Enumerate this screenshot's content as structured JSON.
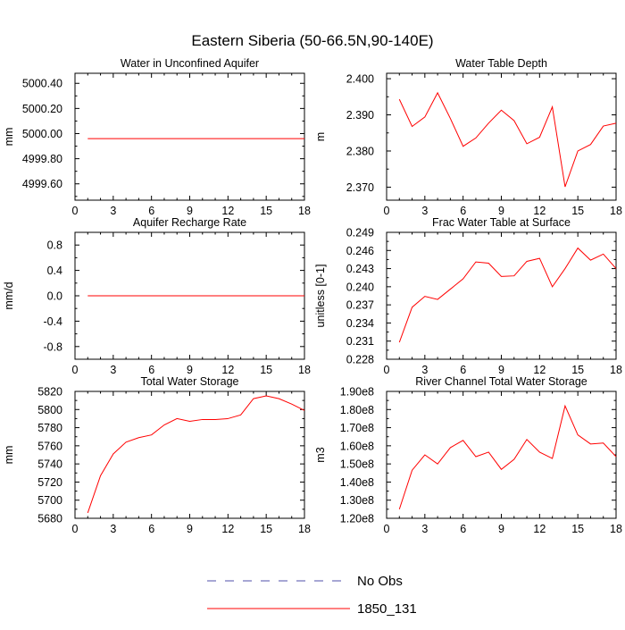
{
  "figure": {
    "title": "Eastern Siberia (50-66.5N,90-140E)",
    "legend": [
      {
        "label": "No Obs",
        "color": "#4f4fa8",
        "dash": true
      },
      {
        "label": "1850_131",
        "color": "#ff0000",
        "dash": false
      }
    ]
  },
  "chart_data": [
    {
      "type": "line",
      "title": "Water in Unconfined Aquifer",
      "ylabel": "mm",
      "x": [
        1,
        2,
        3,
        4,
        5,
        6,
        7,
        8,
        9,
        10,
        11,
        12,
        13,
        14,
        15,
        16,
        17,
        18
      ],
      "xlim": [
        0,
        18
      ],
      "xticks": [
        0,
        3,
        6,
        9,
        12,
        15,
        18
      ],
      "xtick_labels": [
        "0",
        "3",
        "6",
        "9",
        "12",
        "15",
        "18"
      ],
      "ylim": [
        4999.47,
        5000.48
      ],
      "yticks": [
        4999.6,
        4999.8,
        5000.0,
        5000.2,
        5000.4
      ],
      "ytick_labels": [
        "4999.60",
        "4999.80",
        "5000.00",
        "5000.20",
        "5000.40"
      ],
      "series": [
        {
          "name": "1850_131",
          "values": [
            4999.96,
            4999.96,
            4999.96,
            4999.96,
            4999.96,
            4999.96,
            4999.96,
            4999.96,
            4999.96,
            4999.96,
            4999.96,
            4999.96,
            4999.96,
            4999.96,
            4999.96,
            4999.96,
            4999.96,
            4999.96
          ]
        }
      ]
    },
    {
      "type": "line",
      "title": "Water Table Depth",
      "ylabel": "m",
      "x": [
        1,
        2,
        3,
        4,
        5,
        6,
        7,
        8,
        9,
        10,
        11,
        12,
        13,
        14,
        15,
        16,
        17,
        18
      ],
      "xlim": [
        0,
        18
      ],
      "xticks": [
        0,
        3,
        6,
        9,
        12,
        15,
        18
      ],
      "xtick_labels": [
        "0",
        "3",
        "6",
        "9",
        "12",
        "15",
        "18"
      ],
      "ylim": [
        2.3664,
        2.4015
      ],
      "yticks": [
        2.37,
        2.38,
        2.39,
        2.4
      ],
      "ytick_labels": [
        "2.370",
        "2.380",
        "2.390",
        "2.400"
      ],
      "series": [
        {
          "name": "1850_131",
          "values": [
            2.3943,
            2.3868,
            2.3894,
            2.3961,
            2.389,
            2.3813,
            2.3836,
            2.3877,
            2.3913,
            2.3884,
            2.382,
            2.3838,
            2.3922,
            2.3701,
            2.38,
            2.3818,
            2.3869,
            2.3877
          ]
        }
      ]
    },
    {
      "type": "line",
      "title": "Aquifer Recharge Rate",
      "ylabel": "mm/d",
      "x": [
        1,
        2,
        3,
        4,
        5,
        6,
        7,
        8,
        9,
        10,
        11,
        12,
        13,
        14,
        15,
        16,
        17,
        18
      ],
      "xlim": [
        0,
        18
      ],
      "xticks": [
        0,
        3,
        6,
        9,
        12,
        15,
        18
      ],
      "xtick_labels": [
        "0",
        "3",
        "6",
        "9",
        "12",
        "15",
        "18"
      ],
      "ylim": [
        -1.0,
        1.0
      ],
      "yticks": [
        -0.8,
        -0.4,
        0.0,
        0.4,
        0.8
      ],
      "ytick_labels": [
        "-0.8",
        "-0.4",
        "0.0",
        "0.4",
        "0.8"
      ],
      "series": [
        {
          "name": "1850_131",
          "values": [
            0,
            0,
            0,
            0,
            0,
            0,
            0,
            0,
            0,
            0,
            0,
            0,
            0,
            0,
            0,
            0,
            0,
            0
          ]
        }
      ]
    },
    {
      "type": "line",
      "title": "Frac Water Table at Surface",
      "ylabel": "unitless [0-1]",
      "x": [
        1,
        2,
        3,
        4,
        5,
        6,
        7,
        8,
        9,
        10,
        11,
        12,
        13,
        14,
        15,
        16,
        17,
        18
      ],
      "xlim": [
        0,
        18
      ],
      "xticks": [
        0,
        3,
        6,
        9,
        12,
        15,
        18
      ],
      "xtick_labels": [
        "0",
        "3",
        "6",
        "9",
        "12",
        "15",
        "18"
      ],
      "ylim": [
        0.228,
        0.249
      ],
      "yticks": [
        0.228,
        0.231,
        0.234,
        0.237,
        0.24,
        0.243,
        0.246,
        0.249
      ],
      "ytick_labels": [
        "0.228",
        "0.231",
        "0.234",
        "0.237",
        "0.240",
        "0.243",
        "0.246",
        "0.249"
      ],
      "series": [
        {
          "name": "1850_131",
          "values": [
            0.2308,
            0.2366,
            0.2384,
            0.2379,
            0.2396,
            0.2413,
            0.2441,
            0.2439,
            0.2417,
            0.2418,
            0.2442,
            0.2447,
            0.24,
            0.243,
            0.2464,
            0.2444,
            0.2454,
            0.243
          ]
        }
      ]
    },
    {
      "type": "line",
      "title": "Total Water Storage",
      "ylabel": "mm",
      "x": [
        1,
        2,
        3,
        4,
        5,
        6,
        7,
        8,
        9,
        10,
        11,
        12,
        13,
        14,
        15,
        16,
        17,
        18
      ],
      "xlim": [
        0,
        18
      ],
      "xticks": [
        0,
        3,
        6,
        9,
        12,
        15,
        18
      ],
      "xtick_labels": [
        "0",
        "3",
        "6",
        "9",
        "12",
        "15",
        "18"
      ],
      "ylim": [
        5680,
        5820
      ],
      "yticks": [
        5680,
        5700,
        5720,
        5740,
        5760,
        5780,
        5800,
        5820
      ],
      "ytick_labels": [
        "5680",
        "5700",
        "5720",
        "5740",
        "5760",
        "5780",
        "5800",
        "5820"
      ],
      "series": [
        {
          "name": "1850_131",
          "values": [
            5686,
            5727,
            5751,
            5764,
            5769,
            5772,
            5783,
            5790,
            5787,
            5789,
            5789,
            5790,
            5794,
            5812,
            5815,
            5812,
            5806,
            5799
          ]
        }
      ]
    },
    {
      "type": "line",
      "title": "River Channel Total Water Storage",
      "ylabel": "m3",
      "x": [
        1,
        2,
        3,
        4,
        5,
        6,
        7,
        8,
        9,
        10,
        11,
        12,
        13,
        14,
        15,
        16,
        17,
        18
      ],
      "xlim": [
        0,
        18
      ],
      "xticks": [
        0,
        3,
        6,
        9,
        12,
        15,
        18
      ],
      "xtick_labels": [
        "0",
        "3",
        "6",
        "9",
        "12",
        "15",
        "18"
      ],
      "ylim": [
        120000000,
        190000000
      ],
      "yticks": [
        120000000,
        130000000,
        140000000,
        150000000,
        160000000,
        170000000,
        180000000,
        190000000
      ],
      "ytick_labels": [
        "1.20e8",
        "1.30e8",
        "1.40e8",
        "1.50e8",
        "1.60e8",
        "1.70e8",
        "1.80e8",
        "1.90e8"
      ],
      "series": [
        {
          "name": "1850_131",
          "values": [
            125000000,
            146500000,
            155000000,
            150000000,
            159000000,
            163000000,
            154000000,
            156500000,
            147000000,
            152500000,
            163500000,
            156500000,
            153000000,
            182000000,
            166000000,
            161000000,
            161500000,
            154000000
          ]
        }
      ]
    }
  ]
}
